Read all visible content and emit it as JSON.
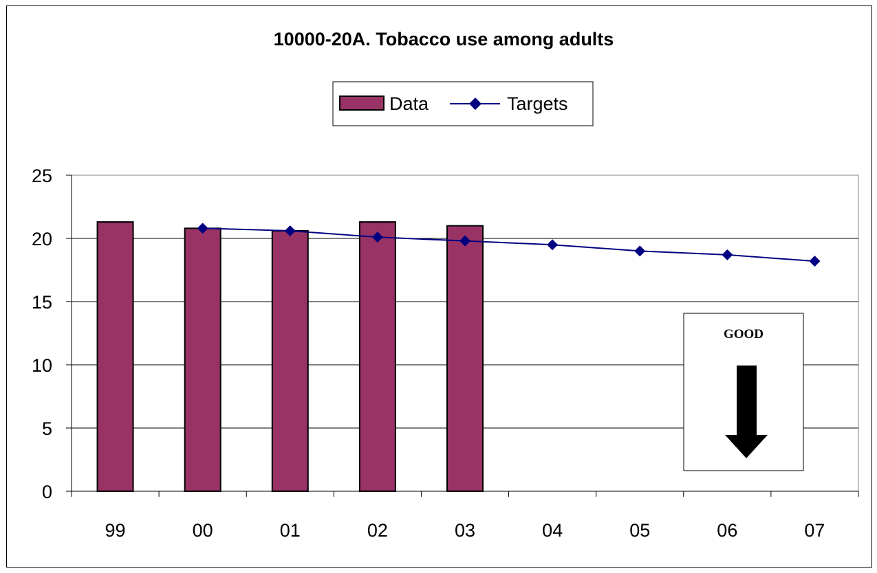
{
  "chart_data": {
    "type": "bar",
    "title": "10000-20A. Tobacco use among adults",
    "categories": [
      "99",
      "00",
      "01",
      "02",
      "03",
      "04",
      "05",
      "06",
      "07"
    ],
    "series": [
      {
        "name": "Data",
        "kind": "bar",
        "color": "#993366",
        "values": [
          21.3,
          20.8,
          20.6,
          21.3,
          21.0,
          null,
          null,
          null,
          null
        ]
      },
      {
        "name": "Targets",
        "kind": "line",
        "color": "#000080",
        "marker": "diamond",
        "values": [
          null,
          20.8,
          20.6,
          20.1,
          19.8,
          19.5,
          19.0,
          18.7,
          18.2
        ]
      }
    ],
    "ylim": [
      0,
      25
    ],
    "yticks": [
      0,
      5,
      10,
      15,
      20,
      25
    ],
    "grid": true,
    "legend_position": "top-center",
    "annotation": {
      "text": "GOOD",
      "icon": "down-arrow-icon"
    }
  }
}
